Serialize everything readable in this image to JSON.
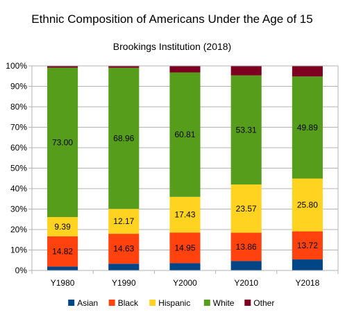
{
  "chart_data": {
    "type": "bar",
    "stacked": true,
    "percent_stacked": true,
    "title": "Ethnic Composition of Americans Under the Age of 15",
    "subtitle": "Brookings Institution (2018)",
    "categories": [
      "Y1980",
      "Y1990",
      "Y2000",
      "Y2010",
      "Y2018"
    ],
    "y_ticks": [
      "0%",
      "10%",
      "20%",
      "30%",
      "40%",
      "50%",
      "60%",
      "70%",
      "80%",
      "90%",
      "100%"
    ],
    "ylim": [
      0,
      100
    ],
    "grid": true,
    "legend_position": "bottom",
    "series": [
      {
        "name": "Asian",
        "color": "#004586",
        "values": [
          1.9,
          3.3,
          3.6,
          4.6,
          5.4
        ],
        "labels": [
          "",
          "",
          "",
          "",
          ""
        ]
      },
      {
        "name": "Black",
        "color": "#ff420e",
        "values": [
          14.82,
          14.63,
          14.95,
          13.86,
          13.72
        ],
        "labels": [
          "14.82",
          "14.63",
          "14.95",
          "13.86",
          "13.72"
        ]
      },
      {
        "name": "Hispanic",
        "color": "#ffd320",
        "values": [
          9.39,
          12.17,
          17.43,
          23.57,
          25.8
        ],
        "labels": [
          "9.39",
          "12.17",
          "17.43",
          "23.57",
          "25.80"
        ]
      },
      {
        "name": "White",
        "color": "#579d1c",
        "values": [
          73.0,
          68.96,
          60.81,
          53.31,
          49.89
        ],
        "labels": [
          "73.00",
          "68.96",
          "60.81",
          "53.31",
          "49.89"
        ]
      },
      {
        "name": "Other",
        "color": "#7e0021",
        "values": [
          0.89,
          0.94,
          3.21,
          4.66,
          5.19
        ],
        "labels": [
          "",
          "",
          "",
          "",
          ""
        ]
      }
    ]
  }
}
